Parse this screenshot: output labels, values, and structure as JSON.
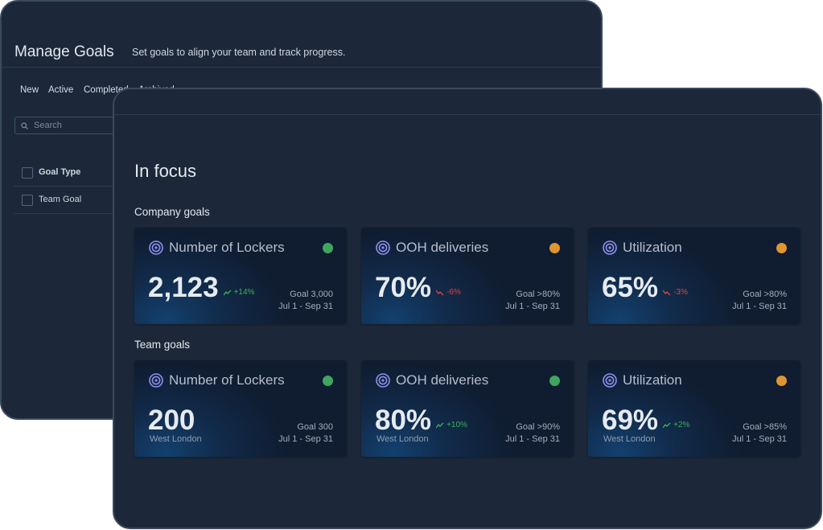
{
  "manage_goals": {
    "title": "Manage Goals",
    "subtitle": "Set goals to align your team and track progress.",
    "tabs": [
      "New",
      "Active",
      "Completed",
      "Archived"
    ],
    "search_placeholder": "Search",
    "table": {
      "headers": [
        "Goal Type"
      ],
      "rows": [
        [
          "Team Goal"
        ]
      ]
    }
  },
  "in_focus": {
    "title": "In focus",
    "up_color": "#3cb35a",
    "down_color": "#e0453f",
    "sections": [
      {
        "title": "Company goals",
        "cards": [
          {
            "title": "Number of Lockers",
            "value": "2,123",
            "change": "+14%",
            "trend": "up",
            "goal": "Goal 3,000",
            "period": "Jul 1 - Sep 31",
            "status_color": "#3fa65f"
          },
          {
            "title": "OOH deliveries",
            "value": "70%",
            "change": "-6%",
            "trend": "down",
            "goal": "Goal >80%",
            "period": "Jul 1 - Sep 31",
            "status_color": "#e0952f"
          },
          {
            "title": "Utilization",
            "value": "65%",
            "change": "-3%",
            "trend": "down",
            "goal": "Goal >80%",
            "period": "Jul 1 - Sep 31",
            "status_color": "#e0952f"
          }
        ]
      },
      {
        "title": "Team goals",
        "cards": [
          {
            "title": "Number of Lockers",
            "value": "200",
            "location": "West London",
            "goal": "Goal 300",
            "period": "Jul 1 - Sep 31",
            "status_color": "#3fa65f"
          },
          {
            "title": "OOH deliveries",
            "value": "80%",
            "change": "+10%",
            "trend": "up",
            "location": "West London",
            "goal": "Goal >90%",
            "period": "Jul 1 - Sep 31",
            "status_color": "#3fa65f"
          },
          {
            "title": "Utilization",
            "value": "69%",
            "change": "+2%",
            "trend": "up",
            "location": "West London",
            "goal": "Goal >85%",
            "period": "Jul 1 - Sep 31",
            "status_color": "#e0952f"
          }
        ]
      }
    ]
  }
}
